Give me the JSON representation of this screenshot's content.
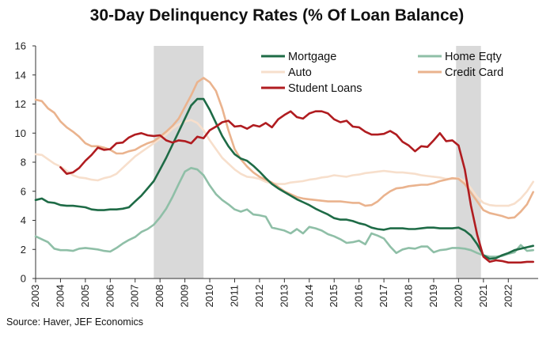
{
  "chart_data": {
    "type": "line",
    "title": "30-Day Delinquency Rates (% Of Loan Balance)",
    "source": "Source: Haver, JEF Economics",
    "xlim": [
      2003.0,
      2023.2
    ],
    "ylim": [
      0,
      16
    ],
    "yticks": [
      0,
      2,
      4,
      6,
      8,
      10,
      12,
      14,
      16
    ],
    "xticks": [
      "2003",
      "2004",
      "2005",
      "2006",
      "2007",
      "2008",
      "2009",
      "2010",
      "2011",
      "2012",
      "2013",
      "2014",
      "2015",
      "2016",
      "2017",
      "2018",
      "2019",
      "2020",
      "2021",
      "2022"
    ],
    "recessions": [
      [
        2007.75,
        2009.75
      ],
      [
        2019.9,
        2020.9
      ]
    ],
    "grid": false,
    "legend_position": "top-right",
    "series": [
      {
        "name": "Mortgage",
        "color": "#1e6b46",
        "x": [
          2003.0,
          2003.25,
          2003.5,
          2003.75,
          2004.0,
          2004.25,
          2004.5,
          2004.75,
          2005.0,
          2005.25,
          2005.5,
          2005.75,
          2006.0,
          2006.25,
          2006.5,
          2006.75,
          2007.0,
          2007.25,
          2007.5,
          2007.75,
          2008.0,
          2008.25,
          2008.5,
          2008.75,
          2009.0,
          2009.25,
          2009.5,
          2009.75,
          2010.0,
          2010.25,
          2010.5,
          2010.75,
          2011.0,
          2011.25,
          2011.5,
          2011.75,
          2012.0,
          2012.25,
          2012.5,
          2012.75,
          2013.0,
          2013.25,
          2013.5,
          2013.75,
          2014.0,
          2014.25,
          2014.5,
          2014.75,
          2015.0,
          2015.25,
          2015.5,
          2015.75,
          2016.0,
          2016.25,
          2016.5,
          2016.75,
          2017.0,
          2017.25,
          2017.5,
          2017.75,
          2018.0,
          2018.25,
          2018.5,
          2018.75,
          2019.0,
          2019.25,
          2019.5,
          2019.75,
          2020.0,
          2020.25,
          2020.5,
          2020.75,
          2021.0,
          2021.25,
          2021.5,
          2021.75,
          2022.0,
          2022.25,
          2022.5,
          2022.75,
          2023.0
        ],
        "y": [
          5.4,
          5.5,
          5.25,
          5.2,
          5.05,
          5.0,
          5.0,
          4.95,
          4.9,
          4.75,
          4.7,
          4.7,
          4.75,
          4.75,
          4.8,
          4.9,
          5.3,
          5.7,
          6.2,
          6.7,
          7.5,
          8.3,
          9.2,
          10.1,
          11.0,
          11.9,
          12.35,
          12.35,
          11.6,
          10.7,
          9.8,
          9.1,
          8.55,
          8.25,
          8.1,
          7.75,
          7.35,
          6.9,
          6.5,
          6.2,
          5.95,
          5.7,
          5.45,
          5.25,
          5.05,
          4.8,
          4.6,
          4.4,
          4.15,
          4.05,
          4.05,
          3.95,
          3.8,
          3.7,
          3.5,
          3.4,
          3.35,
          3.45,
          3.45,
          3.45,
          3.4,
          3.4,
          3.45,
          3.5,
          3.5,
          3.45,
          3.45,
          3.45,
          3.5,
          3.3,
          2.95,
          2.35,
          1.6,
          1.35,
          1.4,
          1.6,
          1.75,
          1.95,
          2.05,
          2.15,
          2.25
        ]
      },
      {
        "name": "Home Eqty",
        "color": "#8fbfa7",
        "x": [
          2003.0,
          2003.25,
          2003.5,
          2003.75,
          2004.0,
          2004.25,
          2004.5,
          2004.75,
          2005.0,
          2005.25,
          2005.5,
          2005.75,
          2006.0,
          2006.25,
          2006.5,
          2006.75,
          2007.0,
          2007.25,
          2007.5,
          2007.75,
          2008.0,
          2008.25,
          2008.5,
          2008.75,
          2009.0,
          2009.25,
          2009.5,
          2009.75,
          2010.0,
          2010.25,
          2010.5,
          2010.75,
          2011.0,
          2011.25,
          2011.5,
          2011.75,
          2012.0,
          2012.25,
          2012.5,
          2012.75,
          2013.0,
          2013.25,
          2013.5,
          2013.75,
          2014.0,
          2014.25,
          2014.5,
          2014.75,
          2015.0,
          2015.25,
          2015.5,
          2015.75,
          2016.0,
          2016.25,
          2016.5,
          2016.75,
          2017.0,
          2017.25,
          2017.5,
          2017.75,
          2018.0,
          2018.25,
          2018.5,
          2018.75,
          2019.0,
          2019.25,
          2019.5,
          2019.75,
          2020.0,
          2020.25,
          2020.5,
          2020.75,
          2021.0,
          2021.25,
          2021.5,
          2021.75,
          2022.0,
          2022.25,
          2022.5,
          2022.75,
          2023.0
        ],
        "y": [
          2.9,
          2.7,
          2.5,
          2.05,
          1.95,
          1.95,
          1.9,
          2.05,
          2.1,
          2.05,
          2.0,
          1.9,
          1.85,
          2.1,
          2.4,
          2.65,
          2.85,
          3.2,
          3.4,
          3.7,
          4.2,
          4.8,
          5.6,
          6.5,
          7.35,
          7.6,
          7.5,
          7.1,
          6.4,
          5.8,
          5.4,
          5.1,
          4.75,
          4.6,
          4.75,
          4.4,
          4.35,
          4.25,
          3.5,
          3.4,
          3.3,
          3.1,
          3.4,
          3.1,
          3.55,
          3.45,
          3.3,
          3.05,
          2.9,
          2.7,
          2.45,
          2.5,
          2.6,
          2.35,
          3.1,
          2.95,
          2.75,
          2.2,
          1.75,
          2.0,
          2.1,
          2.05,
          2.2,
          2.2,
          1.8,
          1.95,
          2.0,
          2.1,
          2.1,
          2.05,
          1.95,
          1.75,
          1.6,
          1.5,
          1.5,
          1.55,
          1.7,
          1.8,
          2.3,
          1.9,
          1.95
        ]
      },
      {
        "name": "Auto",
        "color": "#f7dfcc",
        "x": [
          2003.0,
          2003.25,
          2003.5,
          2003.75,
          2004.0,
          2004.25,
          2004.5,
          2004.75,
          2005.0,
          2005.25,
          2005.5,
          2005.75,
          2006.0,
          2006.25,
          2006.5,
          2006.75,
          2007.0,
          2007.25,
          2007.5,
          2007.75,
          2008.0,
          2008.25,
          2008.5,
          2008.75,
          2009.0,
          2009.25,
          2009.5,
          2009.75,
          2010.0,
          2010.25,
          2010.5,
          2010.75,
          2011.0,
          2011.25,
          2011.5,
          2011.75,
          2012.0,
          2012.25,
          2012.5,
          2012.75,
          2013.0,
          2013.25,
          2013.5,
          2013.75,
          2014.0,
          2014.25,
          2014.5,
          2014.75,
          2015.0,
          2015.25,
          2015.5,
          2015.75,
          2016.0,
          2016.25,
          2016.5,
          2016.75,
          2017.0,
          2017.25,
          2017.5,
          2017.75,
          2018.0,
          2018.25,
          2018.5,
          2018.75,
          2019.0,
          2019.25,
          2019.5,
          2019.75,
          2020.0,
          2020.25,
          2020.5,
          2020.75,
          2021.0,
          2021.25,
          2021.5,
          2021.75,
          2022.0,
          2022.25,
          2022.5,
          2022.75,
          2023.0
        ],
        "y": [
          8.55,
          8.5,
          8.2,
          7.9,
          7.7,
          7.4,
          7.1,
          6.95,
          6.9,
          6.8,
          6.75,
          6.9,
          7.0,
          7.2,
          7.6,
          8.0,
          8.4,
          8.7,
          9.0,
          9.3,
          9.6,
          9.9,
          10.3,
          10.6,
          10.8,
          10.9,
          10.7,
          10.2,
          9.5,
          8.9,
          8.3,
          7.9,
          7.5,
          7.2,
          7.0,
          6.95,
          6.85,
          6.65,
          6.55,
          6.5,
          6.5,
          6.6,
          6.65,
          6.7,
          6.8,
          6.85,
          6.95,
          7.0,
          7.1,
          7.05,
          7.0,
          7.1,
          7.15,
          7.25,
          7.3,
          7.35,
          7.4,
          7.35,
          7.3,
          7.3,
          7.25,
          7.2,
          7.1,
          7.05,
          7.0,
          6.95,
          6.85,
          6.85,
          6.9,
          6.7,
          6.2,
          5.6,
          5.2,
          5.05,
          5.0,
          5.0,
          5.0,
          5.15,
          5.5,
          6.0,
          6.65
        ]
      },
      {
        "name": "Credit Card",
        "color": "#eab38e",
        "x": [
          2003.0,
          2003.25,
          2003.5,
          2003.75,
          2004.0,
          2004.25,
          2004.5,
          2004.75,
          2005.0,
          2005.25,
          2005.5,
          2005.75,
          2006.0,
          2006.25,
          2006.5,
          2006.75,
          2007.0,
          2007.25,
          2007.5,
          2007.75,
          2008.0,
          2008.25,
          2008.5,
          2008.75,
          2009.0,
          2009.25,
          2009.5,
          2009.75,
          2010.0,
          2010.25,
          2010.5,
          2010.75,
          2011.0,
          2011.25,
          2011.5,
          2011.75,
          2012.0,
          2012.25,
          2012.5,
          2012.75,
          2013.0,
          2013.25,
          2013.5,
          2013.75,
          2014.0,
          2014.25,
          2014.5,
          2014.75,
          2015.0,
          2015.25,
          2015.5,
          2015.75,
          2016.0,
          2016.25,
          2016.5,
          2016.75,
          2017.0,
          2017.25,
          2017.5,
          2017.75,
          2018.0,
          2018.25,
          2018.5,
          2018.75,
          2019.0,
          2019.25,
          2019.5,
          2019.75,
          2020.0,
          2020.25,
          2020.5,
          2020.75,
          2021.0,
          2021.25,
          2021.5,
          2021.75,
          2022.0,
          2022.25,
          2022.5,
          2022.75,
          2023.0
        ],
        "y": [
          12.3,
          12.2,
          11.7,
          11.4,
          10.8,
          10.4,
          10.1,
          9.75,
          9.3,
          9.1,
          9.1,
          9.0,
          8.85,
          8.6,
          8.6,
          8.75,
          8.85,
          9.1,
          9.3,
          9.45,
          9.75,
          10.1,
          10.5,
          11.0,
          11.8,
          12.6,
          13.5,
          13.8,
          13.5,
          12.9,
          11.7,
          10.2,
          8.9,
          8.2,
          7.7,
          7.3,
          7.0,
          6.8,
          6.6,
          6.3,
          6.0,
          5.8,
          5.6,
          5.5,
          5.45,
          5.4,
          5.35,
          5.3,
          5.3,
          5.3,
          5.25,
          5.2,
          5.2,
          5.0,
          5.05,
          5.3,
          5.7,
          6.0,
          6.2,
          6.25,
          6.35,
          6.4,
          6.45,
          6.45,
          6.55,
          6.7,
          6.8,
          6.9,
          6.85,
          6.5,
          5.9,
          5.3,
          4.7,
          4.5,
          4.4,
          4.3,
          4.15,
          4.2,
          4.6,
          5.1,
          5.95
        ]
      },
      {
        "name": "Student Loans",
        "color": "#b01c20",
        "x": [
          2004.0,
          2004.25,
          2004.5,
          2004.75,
          2005.0,
          2005.25,
          2005.5,
          2005.75,
          2006.0,
          2006.25,
          2006.5,
          2006.75,
          2007.0,
          2007.25,
          2007.5,
          2007.75,
          2008.0,
          2008.25,
          2008.5,
          2008.75,
          2009.0,
          2009.25,
          2009.5,
          2009.75,
          2010.0,
          2010.25,
          2010.5,
          2010.75,
          2011.0,
          2011.25,
          2011.5,
          2011.75,
          2012.0,
          2012.25,
          2012.5,
          2012.75,
          2013.0,
          2013.25,
          2013.5,
          2013.75,
          2014.0,
          2014.25,
          2014.5,
          2014.75,
          2015.0,
          2015.25,
          2015.5,
          2015.75,
          2016.0,
          2016.25,
          2016.5,
          2016.75,
          2017.0,
          2017.25,
          2017.5,
          2017.75,
          2018.0,
          2018.25,
          2018.5,
          2018.75,
          2019.0,
          2019.25,
          2019.5,
          2019.75,
          2020.0,
          2020.25,
          2020.5,
          2020.75,
          2021.0,
          2021.25,
          2021.5,
          2021.75,
          2022.0,
          2022.25,
          2022.5,
          2022.75,
          2023.0
        ],
        "y": [
          7.65,
          7.2,
          7.3,
          7.6,
          8.1,
          8.5,
          9.0,
          8.85,
          8.9,
          9.3,
          9.35,
          9.7,
          9.9,
          10.0,
          9.85,
          9.8,
          9.85,
          9.5,
          9.35,
          9.5,
          9.45,
          9.3,
          9.75,
          9.65,
          10.2,
          10.45,
          10.75,
          10.85,
          10.45,
          10.5,
          10.3,
          10.55,
          10.45,
          10.7,
          10.4,
          10.95,
          11.25,
          11.5,
          11.1,
          11.0,
          11.35,
          11.5,
          11.5,
          11.35,
          10.95,
          10.75,
          10.85,
          10.45,
          10.4,
          10.1,
          9.9,
          9.9,
          9.95,
          10.15,
          9.9,
          9.4,
          9.15,
          8.75,
          9.1,
          9.05,
          9.5,
          10.0,
          9.45,
          9.5,
          9.15,
          7.5,
          5.0,
          3.0,
          1.5,
          1.15,
          1.25,
          1.2,
          1.1,
          1.1,
          1.1,
          1.15,
          1.15
        ]
      }
    ]
  }
}
